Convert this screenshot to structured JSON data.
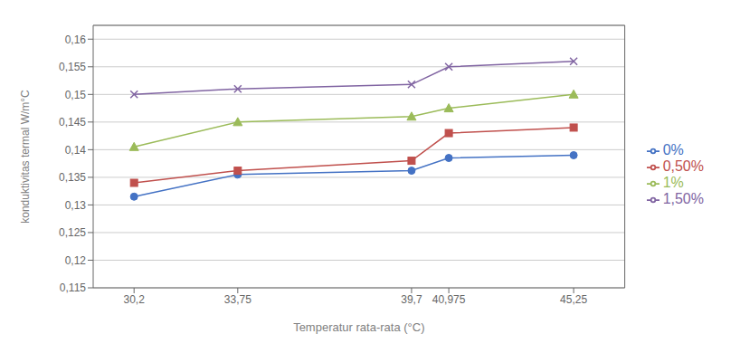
{
  "chart_data": {
    "type": "line",
    "x": [
      30.2,
      33.75,
      39.7,
      40.975,
      45.25
    ],
    "xlabel": "Temperatur rata-rata (°C)",
    "ylabel": "konduktivitas termal W/m°C",
    "xlim": [
      28.8,
      47.0
    ],
    "xticks": [
      {
        "value": 30.2,
        "label": "30,2"
      },
      {
        "value": 33.75,
        "label": "33,75"
      },
      {
        "value": 39.7,
        "label": "39,7"
      },
      {
        "value": 40.975,
        "label": "40,975"
      },
      {
        "value": 45.25,
        "label": "45,25"
      }
    ],
    "ylim": [
      0.115,
      0.1625
    ],
    "yticks": [
      {
        "value": 0.115,
        "label": "0,115"
      },
      {
        "value": 0.12,
        "label": "0,12"
      },
      {
        "value": 0.125,
        "label": "0,125"
      },
      {
        "value": 0.13,
        "label": "0,13"
      },
      {
        "value": 0.135,
        "label": "0,135"
      },
      {
        "value": 0.14,
        "label": "0,14"
      },
      {
        "value": 0.145,
        "label": "0,145"
      },
      {
        "value": 0.15,
        "label": "0,15"
      },
      {
        "value": 0.155,
        "label": "0,155"
      },
      {
        "value": 0.16,
        "label": "0,16"
      }
    ],
    "grid": true,
    "legend": "right",
    "series": [
      {
        "name": "0%",
        "color": "#4472C4",
        "marker": "circle",
        "line_style": "solid",
        "values": [
          0.1315,
          0.1355,
          0.1362,
          0.1385,
          0.139
        ]
      },
      {
        "name": "0,50%",
        "color": "#C0504D",
        "marker": "square",
        "line_style": "solid",
        "values": [
          0.134,
          0.1362,
          0.138,
          0.143,
          0.144
        ]
      },
      {
        "name": "1%",
        "color": "#9BBB59",
        "marker": "triangle",
        "line_style": "solid",
        "values": [
          0.1405,
          0.145,
          0.146,
          0.1475,
          0.15
        ]
      },
      {
        "name": "1,50%",
        "color": "#8064A2",
        "marker": "cross",
        "line_style": "solid",
        "values": [
          0.15,
          0.151,
          0.1518,
          0.155,
          0.156
        ]
      }
    ]
  }
}
